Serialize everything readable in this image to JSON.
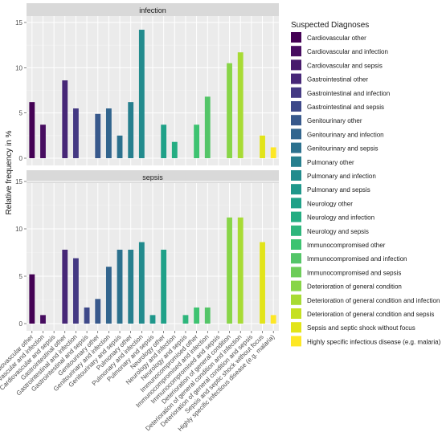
{
  "chart_data": {
    "type": "bar",
    "ylabel": "Relative frequency in %",
    "xlabel": "",
    "ylim": [
      0,
      15
    ],
    "yticks": [
      0,
      5,
      10,
      15
    ],
    "grid": true,
    "legend_position": "right",
    "legend_title": "Suspected Diagnoses",
    "categories": [
      "Cardiovascular other",
      "Cardiovascular and infection",
      "Cardiovascular and sepsis",
      "Gastrointestinal other",
      "Gastrointestinal and infection",
      "Gastrointestinal and sepsis",
      "Genitourinary other",
      "Genitourinary and infection",
      "Genitourinary and sepsis",
      "Pulmonary other",
      "Pulmonary and infection",
      "Pulmonary and sepsis",
      "Neurology other",
      "Neurology and infection",
      "Neurology and sepsis",
      "Immunocompromised other",
      "Immunocompromised and infection",
      "Immunocompromised and sepsis",
      "Deterioration of general condition",
      "Deterioration of general condition and infection",
      "Deterioration of general condition and sepsis",
      "Sepsis and septic shock without focus",
      "Highly specific infectious disease (e.g. malaria)"
    ],
    "colors": [
      "#440154",
      "#470D60",
      "#481A6C",
      "#472777",
      "#443983",
      "#3E4989",
      "#38598C",
      "#32658E",
      "#2C718E",
      "#277F8E",
      "#228B8D",
      "#1F978B",
      "#1FA188",
      "#24AD82",
      "#2EB67C",
      "#3DC371",
      "#54C568",
      "#6DCD59",
      "#88D548",
      "#A8DB34",
      "#C5E021",
      "#E2E419",
      "#FDE725"
    ],
    "panels": [
      {
        "title": "infection",
        "values": [
          6.2,
          3.7,
          0,
          8.6,
          5.5,
          0,
          4.9,
          5.5,
          2.5,
          6.2,
          14.2,
          0,
          3.7,
          1.8,
          0,
          3.7,
          6.8,
          0,
          10.5,
          11.7,
          0,
          2.5,
          1.2
        ]
      },
      {
        "title": "sepsis",
        "values": [
          5.2,
          0.9,
          0,
          7.8,
          6.9,
          1.7,
          2.6,
          6.0,
          7.8,
          7.8,
          8.6,
          0.9,
          7.8,
          0,
          0.9,
          1.7,
          1.7,
          0,
          11.2,
          11.2,
          0,
          8.6,
          0.9
        ]
      }
    ]
  }
}
